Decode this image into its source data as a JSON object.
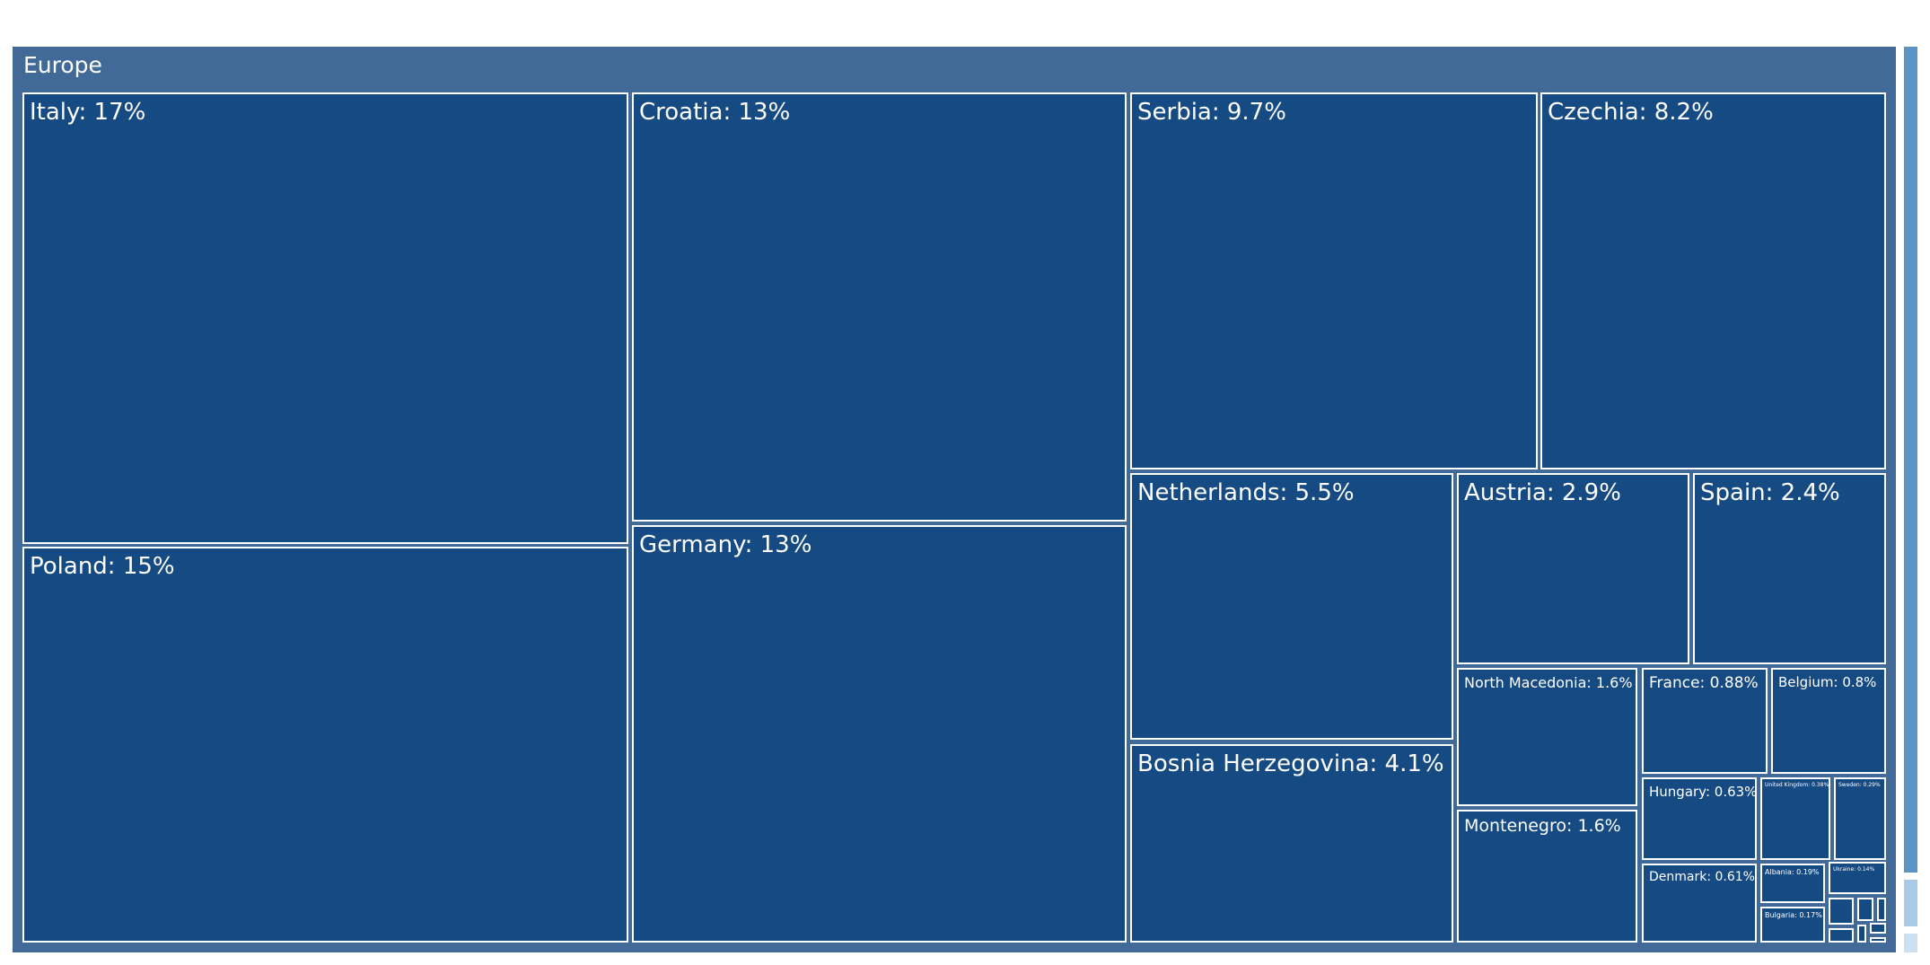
{
  "chart_data": {
    "type": "treemap",
    "root": "Europe",
    "unit": "%",
    "items": [
      {
        "name": "Italy",
        "label": "Italy: 17%",
        "value": 17
      },
      {
        "name": "Poland",
        "label": "Poland: 15%",
        "value": 15
      },
      {
        "name": "Croatia",
        "label": "Croatia: 13%",
        "value": 13
      },
      {
        "name": "Germany",
        "label": "Germany: 13%",
        "value": 13
      },
      {
        "name": "Serbia",
        "label": "Serbia: 9.7%",
        "value": 9.7
      },
      {
        "name": "Czechia",
        "label": "Czechia: 8.2%",
        "value": 8.2
      },
      {
        "name": "Netherlands",
        "label": "Netherlands: 5.5%",
        "value": 5.5
      },
      {
        "name": "Bosnia Herzegovina",
        "label": "Bosnia Herzegovina: 4.1%",
        "value": 4.1
      },
      {
        "name": "Austria",
        "label": "Austria: 2.9%",
        "value": 2.9
      },
      {
        "name": "Spain",
        "label": "Spain: 2.4%",
        "value": 2.4
      },
      {
        "name": "North Macedonia",
        "label": "North Macedonia: 1.6%",
        "value": 1.6
      },
      {
        "name": "Montenegro",
        "label": "Montenegro: 1.6%",
        "value": 1.6
      },
      {
        "name": "France",
        "label": "France: 0.88%",
        "value": 0.88
      },
      {
        "name": "Belgium",
        "label": "Belgium: 0.8%",
        "value": 0.8
      },
      {
        "name": "Hungary",
        "label": "Hungary: 0.63%",
        "value": 0.63
      },
      {
        "name": "Denmark",
        "label": "Denmark: 0.61%",
        "value": 0.61
      },
      {
        "name": "United Kingdom",
        "label": "United Kingdom: 0.38%",
        "value": 0.38
      },
      {
        "name": "Sweden",
        "label": "Sweden: 0.29%",
        "value": 0.29
      },
      {
        "name": "Albania",
        "label": "Albania: 0.19%",
        "value": 0.19
      },
      {
        "name": "Ukraine",
        "label": "Ukraine: 0.14%",
        "value": 0.14
      },
      {
        "name": "Bulgaria",
        "label": "Bulgaria: 0.17%",
        "value": 0.17
      },
      {
        "name": "",
        "label": "",
        "value": null
      },
      {
        "name": "",
        "label": "",
        "value": null
      },
      {
        "name": "",
        "label": "",
        "value": null
      },
      {
        "name": "",
        "label": "",
        "value": null
      },
      {
        "name": "",
        "label": "",
        "value": null
      },
      {
        "name": "",
        "label": "",
        "value": null
      },
      {
        "name": "",
        "label": "",
        "value": null
      }
    ],
    "colorbar_colors": [
      "#5b94c6",
      "#a9cbe9",
      "#cde0f2"
    ]
  }
}
